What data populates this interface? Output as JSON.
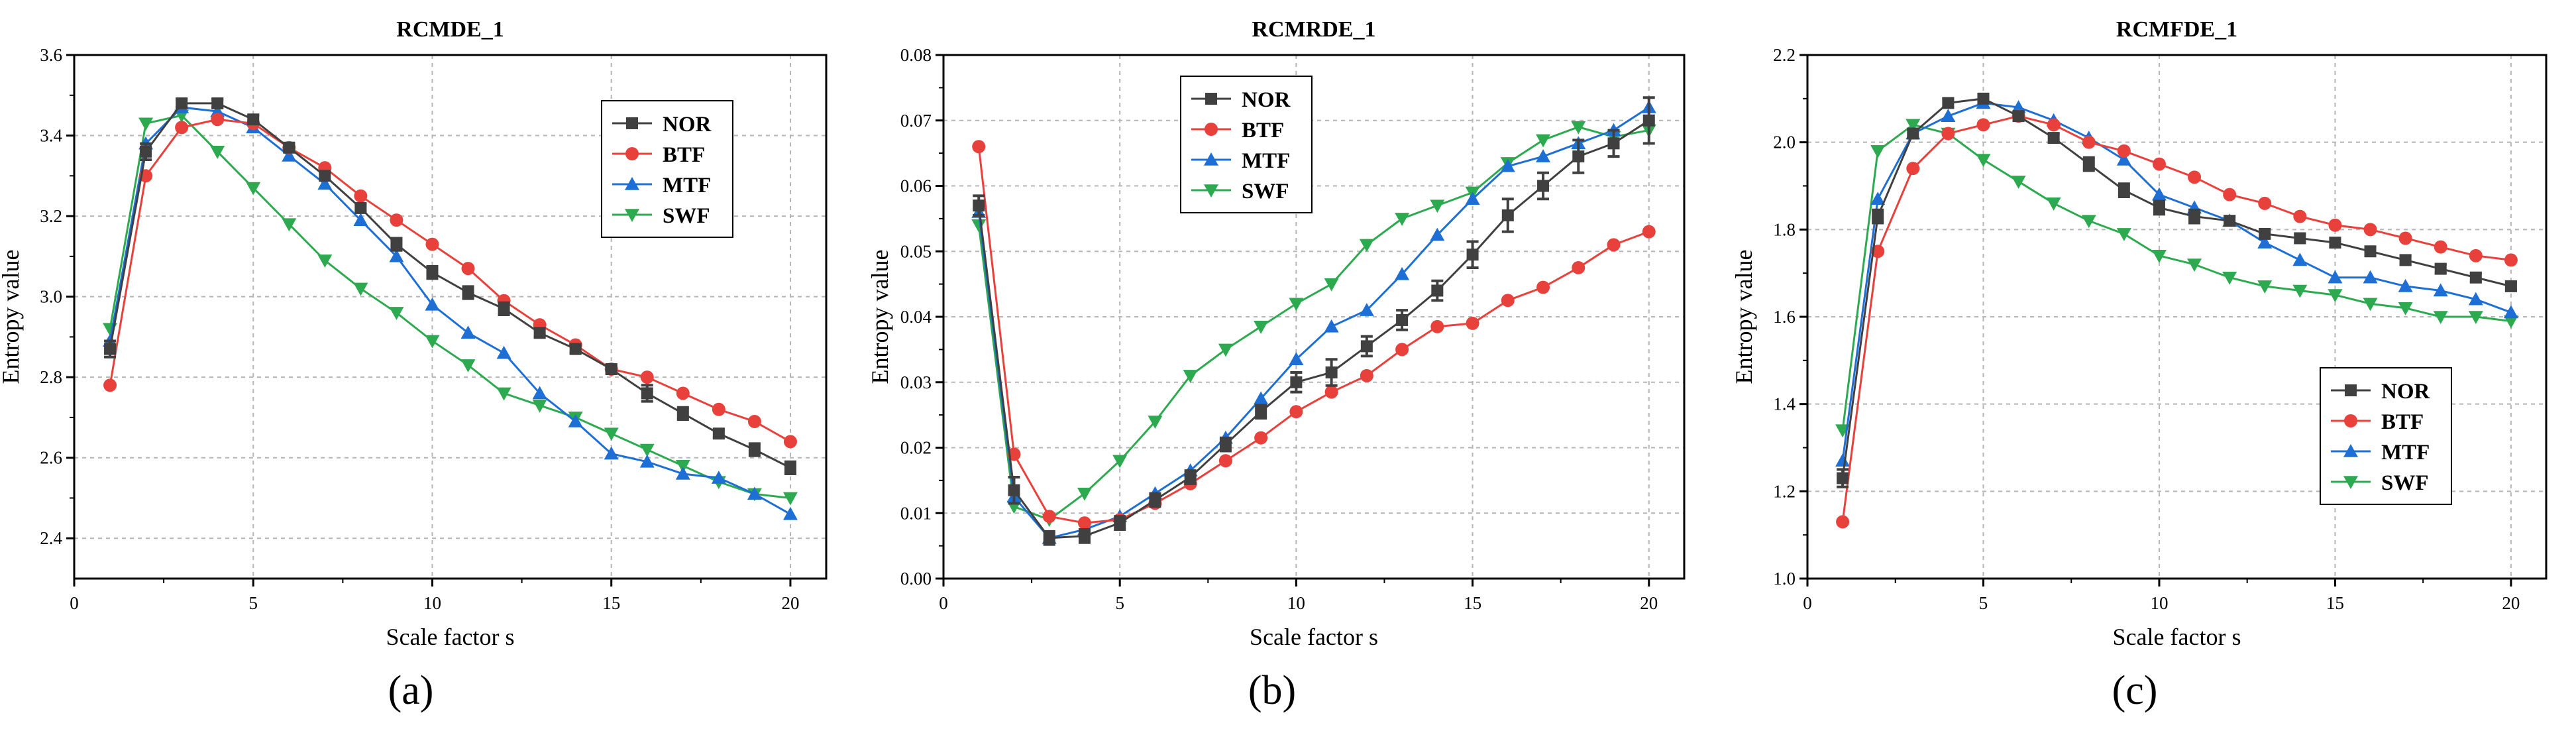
{
  "chart_data": [
    {
      "type": "line",
      "panel_label": "(a)",
      "title": "RCMDE_1",
      "xlabel": "Scale factor s",
      "ylabel": "Entropy value",
      "xlim": [
        0,
        21
      ],
      "ylim": [
        2.3,
        3.6
      ],
      "xticks": [
        "0",
        "5",
        "10",
        "15",
        "20"
      ],
      "yticks": [
        "2.4",
        "2.6",
        "2.8",
        "3.0",
        "3.2",
        "3.4",
        "3.6"
      ],
      "grid": true,
      "legend_position": "top-right",
      "x": [
        1,
        2,
        3,
        4,
        5,
        6,
        7,
        8,
        9,
        10,
        11,
        12,
        13,
        14,
        15,
        16,
        17,
        18,
        19,
        20
      ],
      "series": [
        {
          "name": "NOR",
          "color": "#404040",
          "marker": "square",
          "values": [
            2.87,
            3.36,
            3.48,
            3.48,
            3.44,
            3.37,
            3.3,
            3.22,
            3.13,
            3.06,
            3.01,
            2.97,
            2.91,
            2.87,
            2.82,
            2.76,
            2.71,
            2.66,
            2.62,
            2.575
          ],
          "errors": [
            0.02,
            0.02,
            0.01,
            0.01,
            0.01,
            0.01,
            0.01,
            0.01,
            0.015,
            0.015,
            0.015,
            0.015,
            0.01,
            0.01,
            0.01,
            0.02,
            0.015,
            0.01,
            0.015,
            0.015
          ]
        },
        {
          "name": "BTF",
          "color": "#e8413c",
          "marker": "circle",
          "values": [
            2.78,
            3.3,
            3.42,
            3.44,
            3.43,
            3.37,
            3.32,
            3.25,
            3.19,
            3.13,
            3.07,
            2.99,
            2.93,
            2.88,
            2.82,
            2.8,
            2.76,
            2.72,
            2.69,
            2.64
          ]
        },
        {
          "name": "MTF",
          "color": "#1d6fd6",
          "marker": "triangle-up",
          "values": [
            2.89,
            3.38,
            3.47,
            3.46,
            3.42,
            3.35,
            3.28,
            3.19,
            3.1,
            2.98,
            2.91,
            2.86,
            2.76,
            2.69,
            2.61,
            2.59,
            2.56,
            2.55,
            2.51,
            2.46
          ]
        },
        {
          "name": "SWF",
          "color": "#2daa4f",
          "marker": "triangle-down",
          "values": [
            2.92,
            3.43,
            3.45,
            3.36,
            3.27,
            3.18,
            3.09,
            3.02,
            2.96,
            2.89,
            2.83,
            2.76,
            2.73,
            2.7,
            2.66,
            2.62,
            2.58,
            2.54,
            2.51,
            2.5
          ]
        }
      ]
    },
    {
      "type": "line",
      "panel_label": "(b)",
      "title": "RCMRDE_1",
      "xlabel": "Scale factor s",
      "ylabel": "Entropy value",
      "xlim": [
        0,
        21
      ],
      "ylim": [
        0,
        0.08
      ],
      "xticks": [
        "0",
        "5",
        "10",
        "15",
        "20"
      ],
      "yticks": [
        "0.00",
        "0.01",
        "0.02",
        "0.03",
        "0.04",
        "0.05",
        "0.06",
        "0.07",
        "0.08"
      ],
      "grid": true,
      "legend_position": "top-left",
      "x": [
        1,
        2,
        3,
        4,
        5,
        6,
        7,
        8,
        9,
        10,
        11,
        12,
        13,
        14,
        15,
        16,
        17,
        18,
        19,
        20
      ],
      "series": [
        {
          "name": "NOR",
          "color": "#404040",
          "marker": "square",
          "values": [
            0.057,
            0.0135,
            0.0062,
            0.0065,
            0.0085,
            0.012,
            0.0155,
            0.0205,
            0.0255,
            0.03,
            0.0315,
            0.0355,
            0.0395,
            0.044,
            0.0495,
            0.0555,
            0.06,
            0.0645,
            0.0665,
            0.07
          ],
          "errors": [
            0.0015,
            0.002,
            0.001,
            0.001,
            0.001,
            0.001,
            0.001,
            0.001,
            0.001,
            0.0015,
            0.002,
            0.0015,
            0.0015,
            0.0015,
            0.002,
            0.0025,
            0.002,
            0.0025,
            0.002,
            0.0035
          ]
        },
        {
          "name": "BTF",
          "color": "#e8413c",
          "marker": "circle",
          "values": [
            0.066,
            0.019,
            0.0095,
            0.0085,
            0.009,
            0.0115,
            0.0145,
            0.018,
            0.0215,
            0.0255,
            0.0285,
            0.031,
            0.035,
            0.0385,
            0.039,
            0.0425,
            0.0445,
            0.0475,
            0.051,
            0.053
          ]
        },
        {
          "name": "MTF",
          "color": "#1d6fd6",
          "marker": "triangle-up",
          "values": [
            0.056,
            0.0125,
            0.0062,
            0.0075,
            0.0095,
            0.013,
            0.0165,
            0.0215,
            0.0275,
            0.0335,
            0.0385,
            0.041,
            0.0465,
            0.0525,
            0.058,
            0.063,
            0.0645,
            0.0665,
            0.0685,
            0.072
          ]
        },
        {
          "name": "SWF",
          "color": "#2daa4f",
          "marker": "triangle-down",
          "values": [
            0.054,
            0.011,
            0.009,
            0.013,
            0.018,
            0.024,
            0.031,
            0.035,
            0.0385,
            0.042,
            0.045,
            0.051,
            0.055,
            0.057,
            0.059,
            0.0635,
            0.067,
            0.069,
            0.0675,
            0.0685
          ]
        }
      ]
    },
    {
      "type": "line",
      "panel_label": "(c)",
      "title": "RCMFDE_1",
      "xlabel": "Scale factor s",
      "ylabel": "Entropy value",
      "xlim": [
        0,
        21
      ],
      "ylim": [
        1.0,
        2.2
      ],
      "xticks": [
        "0",
        "5",
        "10",
        "15",
        "20"
      ],
      "yticks": [
        "1.0",
        "1.2",
        "1.4",
        "1.6",
        "1.8",
        "2.0",
        "2.2"
      ],
      "grid": true,
      "legend_position": "bottom-right",
      "x": [
        1,
        2,
        3,
        4,
        5,
        6,
        7,
        8,
        9,
        10,
        11,
        12,
        13,
        14,
        15,
        16,
        17,
        18,
        19,
        20
      ],
      "series": [
        {
          "name": "NOR",
          "color": "#404040",
          "marker": "square",
          "values": [
            1.23,
            1.83,
            2.02,
            2.09,
            2.1,
            2.06,
            2.01,
            1.95,
            1.89,
            1.85,
            1.83,
            1.82,
            1.79,
            1.78,
            1.77,
            1.75,
            1.73,
            1.71,
            1.69,
            1.67
          ],
          "errors": [
            0.02,
            0.015,
            0.01,
            0.01,
            0.01,
            0.01,
            0.01,
            0.015,
            0.015,
            0.015,
            0.015,
            0.01,
            0.01,
            0.01,
            0.01,
            0.01,
            0.01,
            0.01,
            0.01,
            0.01
          ]
        },
        {
          "name": "BTF",
          "color": "#e8413c",
          "marker": "circle",
          "values": [
            1.13,
            1.75,
            1.94,
            2.02,
            2.04,
            2.06,
            2.04,
            2.0,
            1.98,
            1.95,
            1.92,
            1.88,
            1.86,
            1.83,
            1.81,
            1.8,
            1.78,
            1.76,
            1.74,
            1.73
          ]
        },
        {
          "name": "MTF",
          "color": "#1d6fd6",
          "marker": "triangle-up",
          "values": [
            1.27,
            1.87,
            2.02,
            2.06,
            2.09,
            2.08,
            2.05,
            2.01,
            1.96,
            1.88,
            1.85,
            1.82,
            1.77,
            1.73,
            1.69,
            1.69,
            1.67,
            1.66,
            1.64,
            1.61
          ]
        },
        {
          "name": "SWF",
          "color": "#2daa4f",
          "marker": "triangle-down",
          "values": [
            1.34,
            1.98,
            2.04,
            2.02,
            1.96,
            1.91,
            1.86,
            1.82,
            1.79,
            1.74,
            1.72,
            1.69,
            1.67,
            1.66,
            1.65,
            1.63,
            1.62,
            1.6,
            1.6,
            1.59
          ]
        }
      ]
    }
  ]
}
